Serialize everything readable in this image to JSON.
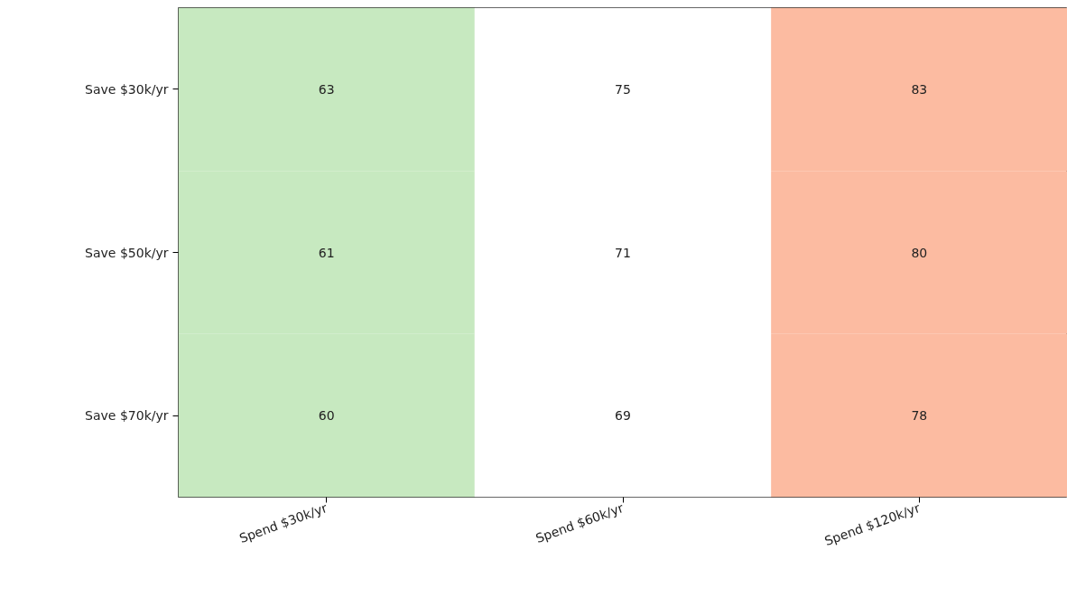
{
  "chart_data": {
    "type": "heatmap",
    "categories": [
      "Spend $30k/yr",
      "Spend $60k/yr",
      "Spend $120k/yr"
    ],
    "y_categories": [
      "Save $30k/yr",
      "Save $50k/yr",
      "Save $70k/yr"
    ],
    "cells": [
      [
        63,
        75,
        83
      ],
      [
        61,
        71,
        80
      ],
      [
        60,
        69,
        78
      ]
    ],
    "colors": [
      "#c7e9c0",
      "#ffffff",
      "#fcbba1"
    ],
    "data_labels": true,
    "grid": false
  }
}
